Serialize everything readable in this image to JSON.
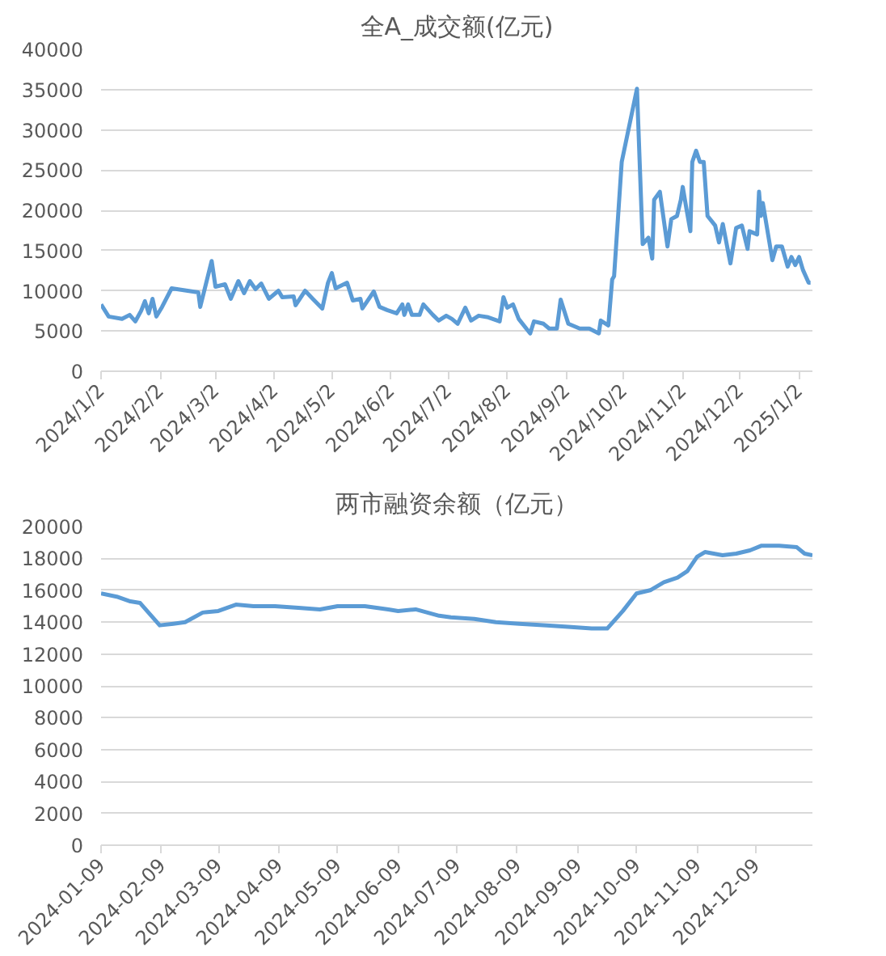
{
  "chart_data": [
    {
      "type": "line",
      "title": "全A_成交额(亿元)",
      "grid": "y",
      "marker": "none",
      "line_style": "solid",
      "xlim": [
        "2024-01-02",
        "2025-01-09"
      ],
      "ylim": [
        0,
        40000
      ],
      "yticks": [
        0,
        5000,
        10000,
        15000,
        20000,
        25000,
        30000,
        35000,
        40000
      ],
      "xticks": [
        {
          "value": "2024-01-02",
          "label": "2024/1/2"
        },
        {
          "value": "2024-02-02",
          "label": "2024/2/2"
        },
        {
          "value": "2024-03-02",
          "label": "2024/3/2"
        },
        {
          "value": "2024-04-02",
          "label": "2024/4/2"
        },
        {
          "value": "2024-05-02",
          "label": "2024/5/2"
        },
        {
          "value": "2024-06-02",
          "label": "2024/6/2"
        },
        {
          "value": "2024-07-02",
          "label": "2024/7/2"
        },
        {
          "value": "2024-08-02",
          "label": "2024/8/2"
        },
        {
          "value": "2024-09-02",
          "label": "2024/9/2"
        },
        {
          "value": "2024-10-02",
          "label": "2024/10/2"
        },
        {
          "value": "2024-11-02",
          "label": "2024/11/2"
        },
        {
          "value": "2024-12-02",
          "label": "2024/12/2"
        },
        {
          "value": "2025-01-02",
          "label": "2025/1/2"
        }
      ],
      "series": [
        {
          "color": "#5b9bd5",
          "x": [
            "2024-01-02",
            "2024-01-06",
            "2024-01-13",
            "2024-01-17",
            "2024-01-20",
            "2024-01-23",
            "2024-01-25",
            "2024-01-27",
            "2024-01-29",
            "2024-01-31",
            "2024-02-03",
            "2024-02-08",
            "2024-02-22",
            "2024-02-23",
            "2024-02-29",
            "2024-03-02",
            "2024-03-07",
            "2024-03-10",
            "2024-03-14",
            "2024-03-17",
            "2024-03-20",
            "2024-03-23",
            "2024-03-26",
            "2024-03-30",
            "2024-04-04",
            "2024-04-06",
            "2024-04-12",
            "2024-04-13",
            "2024-04-18",
            "2024-04-22",
            "2024-04-27",
            "2024-04-30",
            "2024-05-02",
            "2024-05-04",
            "2024-05-10",
            "2024-05-13",
            "2024-05-17",
            "2024-05-18",
            "2024-05-24",
            "2024-05-27",
            "2024-05-31",
            "2024-06-05",
            "2024-06-08",
            "2024-06-09",
            "2024-06-11",
            "2024-06-13",
            "2024-06-17",
            "2024-06-19",
            "2024-06-24",
            "2024-06-27",
            "2024-07-01",
            "2024-07-04",
            "2024-07-07",
            "2024-07-11",
            "2024-07-14",
            "2024-07-18",
            "2024-07-23",
            "2024-07-29",
            "2024-07-31",
            "2024-08-02",
            "2024-08-05",
            "2024-08-08",
            "2024-08-14",
            "2024-08-16",
            "2024-08-21",
            "2024-08-24",
            "2024-08-28",
            "2024-08-30",
            "2024-09-03",
            "2024-09-09",
            "2024-09-14",
            "2024-09-19",
            "2024-09-20",
            "2024-09-24",
            "2024-09-26",
            "2024-09-27",
            "2024-10-01",
            "2024-10-09",
            "2024-10-12",
            "2024-10-15",
            "2024-10-17",
            "2024-10-18",
            "2024-10-21",
            "2024-10-25",
            "2024-10-27",
            "2024-10-30",
            "2024-11-01",
            "2024-11-02",
            "2024-11-04",
            "2024-11-06",
            "2024-11-07",
            "2024-11-09",
            "2024-11-11",
            "2024-11-13",
            "2024-11-15",
            "2024-11-19",
            "2024-11-21",
            "2024-11-23",
            "2024-11-27",
            "2024-11-30",
            "2024-12-03",
            "2024-12-06",
            "2024-12-07",
            "2024-12-11",
            "2024-12-12",
            "2024-12-13",
            "2024-12-14",
            "2024-12-19",
            "2024-12-21",
            "2024-12-24",
            "2024-12-27",
            "2024-12-29",
            "2024-12-31",
            "2025-01-02",
            "2025-01-04",
            "2025-01-07",
            "2025-01-08"
          ],
          "values": [
            8300,
            6800,
            6500,
            7000,
            6200,
            7500,
            8700,
            7200,
            9000,
            6800,
            8000,
            10300,
            9800,
            8000,
            13700,
            10500,
            10800,
            9000,
            11200,
            9700,
            11200,
            10200,
            10900,
            9000,
            10000,
            9200,
            9300,
            8200,
            10000,
            9000,
            7800,
            11000,
            12200,
            10300,
            11000,
            8800,
            9000,
            7800,
            9900,
            8000,
            7600,
            7200,
            8300,
            7000,
            8300,
            7000,
            7000,
            8300,
            7000,
            6300,
            6900,
            6500,
            5900,
            7900,
            6300,
            6900,
            6700,
            6200,
            9200,
            7900,
            8300,
            6500,
            4700,
            6200,
            5900,
            5300,
            5300,
            8900,
            5900,
            5300,
            5300,
            4700,
            6300,
            5700,
            11400,
            11800,
            26000,
            35100,
            15800,
            16600,
            14000,
            21300,
            22300,
            15500,
            18900,
            19300,
            21300,
            22900,
            20100,
            17400,
            26000,
            27400,
            26000,
            26000,
            19300,
            18100,
            16000,
            18300,
            13400,
            17800,
            18100,
            15200,
            17400,
            17000,
            22300,
            19300,
            20900,
            13800,
            15500,
            15500,
            13000,
            14200,
            13200,
            14200,
            12600,
            11000,
            11000
          ]
        }
      ]
    },
    {
      "type": "line",
      "title": "两市融资余额（亿元）",
      "grid": "y",
      "marker": "none",
      "line_style": "solid",
      "xlim": [
        "2024-01-09",
        "2025-01-07"
      ],
      "ylim": [
        0,
        20000
      ],
      "yticks": [
        0,
        2000,
        4000,
        6000,
        8000,
        10000,
        12000,
        14000,
        16000,
        18000,
        20000
      ],
      "xticks": [
        "2024-01-09",
        "2024-02-09",
        "2024-03-09",
        "2024-04-09",
        "2024-05-09",
        "2024-06-09",
        "2024-07-09",
        "2024-08-09",
        "2024-09-09",
        "2024-10-09",
        "2024-11-09",
        "2024-12-09"
      ],
      "series": [
        {
          "color": "#5b9bd5",
          "x": [
            "2024-01-09",
            "2024-01-17",
            "2024-01-24",
            "2024-01-29",
            "2024-02-03",
            "2024-02-08",
            "2024-02-15",
            "2024-02-21",
            "2024-03-01",
            "2024-03-09",
            "2024-03-18",
            "2024-03-27",
            "2024-04-07",
            "2024-04-19",
            "2024-04-30",
            "2024-05-09",
            "2024-05-23",
            "2024-06-04",
            "2024-06-09",
            "2024-06-18",
            "2024-06-30",
            "2024-07-06",
            "2024-07-18",
            "2024-07-29",
            "2024-08-10",
            "2024-08-24",
            "2024-09-04",
            "2024-09-16",
            "2024-09-24",
            "2024-10-02",
            "2024-10-09",
            "2024-10-16",
            "2024-10-23",
            "2024-10-30",
            "2024-11-04",
            "2024-11-09",
            "2024-11-13",
            "2024-11-22",
            "2024-11-29",
            "2024-12-06",
            "2024-12-12",
            "2024-12-21",
            "2024-12-30",
            "2025-01-03",
            "2025-01-07"
          ],
          "values": [
            15800,
            15600,
            15300,
            15200,
            14500,
            13800,
            13900,
            14000,
            14600,
            14700,
            15100,
            15000,
            15000,
            14900,
            14800,
            15000,
            15000,
            14800,
            14700,
            14800,
            14400,
            14300,
            14200,
            14000,
            13900,
            13800,
            13700,
            13600,
            13600,
            14700,
            15800,
            16000,
            16500,
            16800,
            17200,
            18100,
            18400,
            18200,
            18300,
            18500,
            18800,
            18800,
            18700,
            18300,
            18200
          ]
        }
      ]
    }
  ]
}
